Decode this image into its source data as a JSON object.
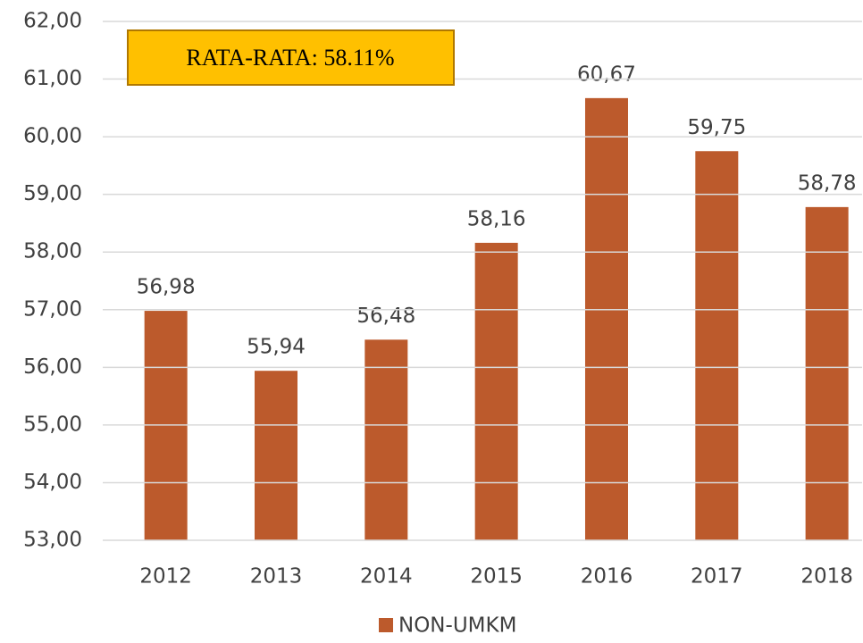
{
  "chart_data": {
    "type": "bar",
    "annotation": "RATA-RATA: 58.11%",
    "categories": [
      "2012",
      "2013",
      "2014",
      "2015",
      "2016",
      "2017",
      "2018"
    ],
    "series": [
      {
        "name": "NON-UMKM",
        "color": "#bc5a2c",
        "values": [
          56.98,
          55.94,
          56.48,
          58.16,
          60.67,
          59.75,
          58.78
        ],
        "value_labels": [
          "56,98",
          "55,94",
          "56,48",
          "58,16",
          "60,67",
          "59,75",
          "58,78"
        ],
        "value_label_colors": [
          "#f2f2f2",
          "#404040",
          "#404040",
          "#404040",
          "#404040",
          "#404040",
          "#404040"
        ]
      }
    ],
    "ylim": [
      53,
      62
    ],
    "yticks": [
      {
        "value": 53,
        "label": "53,00"
      },
      {
        "value": 54,
        "label": "54,00"
      },
      {
        "value": 55,
        "label": "55,00"
      },
      {
        "value": 56,
        "label": "56,00"
      },
      {
        "value": 57,
        "label": "57,00"
      },
      {
        "value": 58,
        "label": "58,00"
      },
      {
        "value": 59,
        "label": "59,00"
      },
      {
        "value": 60,
        "label": "60,00"
      },
      {
        "value": 61,
        "label": "61,00"
      },
      {
        "value": 62,
        "label": "62,00"
      }
    ],
    "grid": true,
    "legend": "bottom"
  }
}
